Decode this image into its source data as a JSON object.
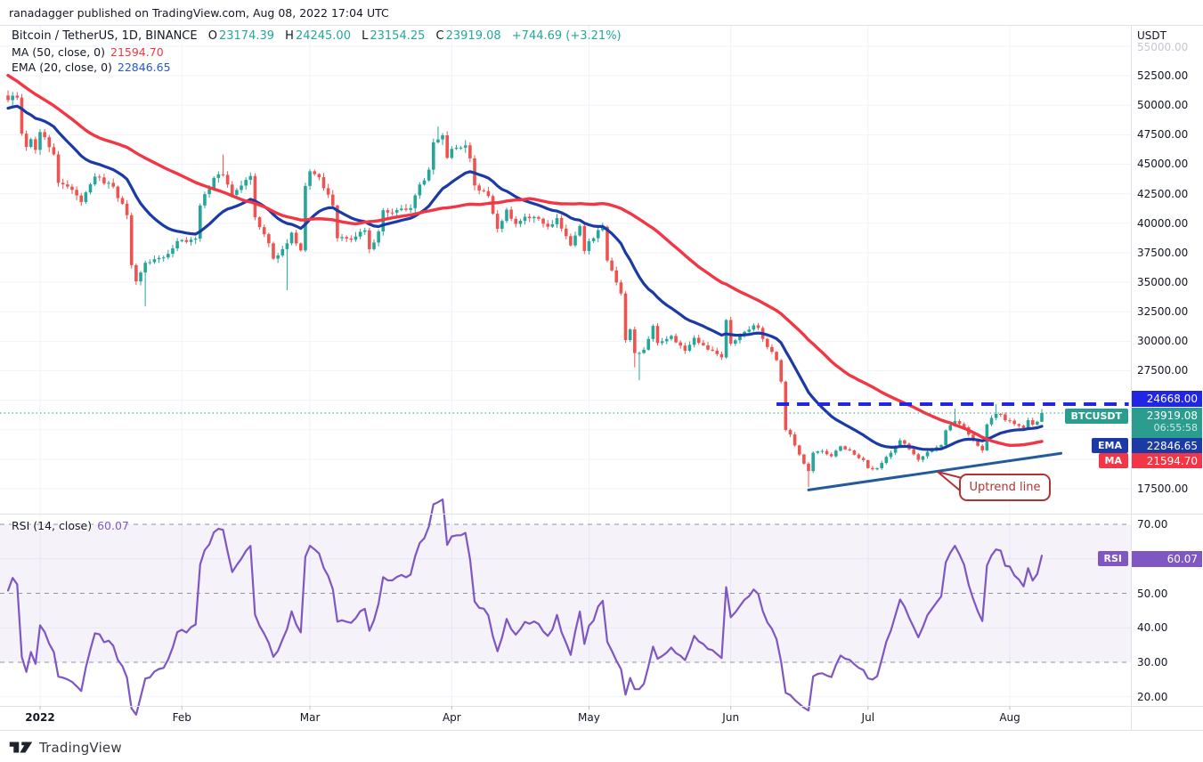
{
  "attribution": "ranadagger published on TradingView.com, Aug 08, 2022 17:04 UTC",
  "legend": {
    "symbol": "Bitcoin / TetherUS, 1D, BINANCE",
    "o_label": "O",
    "o": "23174.39",
    "h_label": "H",
    "h": "24245.00",
    "l_label": "L",
    "l": "23154.25",
    "c_label": "C",
    "c": "23919.08",
    "change": "+744.69 (+3.21%)",
    "ma_label": "MA (50, close, 0)",
    "ma_value": "21594.70",
    "ema_label": "EMA (20, close, 0)",
    "ema_value": "22846.65",
    "rsi_label": "RSI (14, close)",
    "rsi_value": "60.07"
  },
  "price_axis": {
    "currency": "USDT",
    "faded_top_tick": "55000.00",
    "ticks": [
      {
        "label": "52500.00",
        "value": 52500
      },
      {
        "label": "50000.00",
        "value": 50000
      },
      {
        "label": "47500.00",
        "value": 47500
      },
      {
        "label": "45000.00",
        "value": 45000
      },
      {
        "label": "42500.00",
        "value": 42500
      },
      {
        "label": "40000.00",
        "value": 40000
      },
      {
        "label": "37500.00",
        "value": 37500
      },
      {
        "label": "35000.00",
        "value": 35000
      },
      {
        "label": "32500.00",
        "value": 32500
      },
      {
        "label": "30000.00",
        "value": 30000
      },
      {
        "label": "27500.00",
        "value": 27500
      },
      {
        "label": "17500.00",
        "value": 17500
      }
    ]
  },
  "rsi_axis": {
    "ticks": [
      {
        "label": "70.00",
        "value": 70
      },
      {
        "label": "50.00",
        "value": 50
      },
      {
        "label": "40.00",
        "value": 40
      },
      {
        "label": "30.00",
        "value": 30
      },
      {
        "label": "20.00",
        "value": 20
      }
    ]
  },
  "badges": {
    "resistance": "24668.00",
    "symbol_label": "BTCUSDT",
    "price": "23919.08",
    "countdown": "06:55:58",
    "ema_label": "EMA",
    "ema": "22846.65",
    "ma_label": "MA",
    "ma": "21594.70",
    "rsi_label": "RSI",
    "rsi": "60.07"
  },
  "time_axis": {
    "labels": [
      {
        "text": "2022",
        "day": 0,
        "bold": true
      },
      {
        "text": "Feb",
        "day": 31
      },
      {
        "text": "Mar",
        "day": 59
      },
      {
        "text": "Apr",
        "day": 90
      },
      {
        "text": "May",
        "day": 120
      },
      {
        "text": "Jun",
        "day": 151
      },
      {
        "text": "Jul",
        "day": 181
      },
      {
        "text": "Aug",
        "day": 212
      }
    ]
  },
  "callout": {
    "text": "Uptrend line"
  },
  "watermark": "TradingView",
  "colors": {
    "text": "#131722",
    "up": "#26a69a",
    "down": "#ef5350",
    "ma": "#f23645",
    "ema": "#1b3aa6",
    "ema_legend": "#2157d6",
    "rsi": "#7e57c2",
    "rsi_band_fill": "rgba(126,87,194,0.08)",
    "resistance": "#2126e2",
    "last_price": "#2a9d8f",
    "trendline": "#235a9c",
    "callout": "#b13434",
    "grid": "#f0f3fa",
    "dash": "#90949f",
    "border": "#e0e3eb",
    "muted": "#b8bbc4",
    "axis_faded": "#c4c7ce"
  },
  "chart_data": {
    "type": "candlestick",
    "symbol": "BTCUSDT",
    "exchange": "BINANCE",
    "interval": "1D",
    "epoch": "2022-01-01",
    "visible_day_range": [
      -7,
      219
    ],
    "price_pane_range": [
      15200,
      56800
    ],
    "prehistory_keypoints": [
      [
        -60,
        66900
      ],
      [
        -57,
        64100
      ],
      [
        -52,
        60350
      ],
      [
        -46,
        57600
      ],
      [
        -40,
        57800
      ],
      [
        -35,
        49400
      ],
      [
        -30,
        47700
      ],
      [
        -26,
        46700
      ],
      [
        -21,
        46900
      ],
      [
        -16,
        48300
      ],
      [
        -13,
        50100
      ],
      [
        -10,
        50700
      ],
      [
        -8,
        50822
      ]
    ],
    "close_keypoints": [
      [
        -7,
        50428
      ],
      [
        -6,
        50809
      ],
      [
        -5,
        50640
      ],
      [
        -4,
        47588
      ],
      [
        -3,
        46464
      ],
      [
        -2,
        47120
      ],
      [
        -1,
        46216
      ],
      [
        0,
        47722
      ],
      [
        1,
        47286
      ],
      [
        2,
        46446
      ],
      [
        3,
        45832
      ],
      [
        4,
        43425
      ],
      [
        6,
        43100
      ],
      [
        9,
        41800
      ],
      [
        12,
        43950
      ],
      [
        16,
        43100
      ],
      [
        19,
        40680
      ],
      [
        20,
        36445
      ],
      [
        21,
        35070
      ],
      [
        23,
        36650
      ],
      [
        25,
        36950
      ],
      [
        27,
        37100
      ],
      [
        30,
        38480
      ],
      [
        34,
        38700
      ],
      [
        35,
        41500
      ],
      [
        38,
        43840
      ],
      [
        40,
        44100
      ],
      [
        42,
        42400
      ],
      [
        46,
        44000
      ],
      [
        47,
        40500
      ],
      [
        50,
        38300
      ],
      [
        51,
        37000
      ],
      [
        54,
        38300
      ],
      [
        55,
        39200
      ],
      [
        57,
        37700
      ],
      [
        58,
        43160
      ],
      [
        59,
        44400
      ],
      [
        61,
        43900
      ],
      [
        64,
        41500
      ],
      [
        65,
        38730
      ],
      [
        68,
        38600
      ],
      [
        71,
        39400
      ],
      [
        72,
        37800
      ],
      [
        74,
        39300
      ],
      [
        75,
        41100
      ],
      [
        77,
        40900
      ],
      [
        81,
        41280
      ],
      [
        82,
        42360
      ],
      [
        85,
        44540
      ],
      [
        86,
        46850
      ],
      [
        87,
        47100
      ],
      [
        88,
        47450
      ],
      [
        89,
        45540
      ],
      [
        90,
        46300
      ],
      [
        93,
        46600
      ],
      [
        94,
        45500
      ],
      [
        95,
        43200
      ],
      [
        98,
        42300
      ],
      [
        100,
        39530
      ],
      [
        102,
        41150
      ],
      [
        104,
        39940
      ],
      [
        106,
        40550
      ],
      [
        109,
        40380
      ],
      [
        111,
        39700
      ],
      [
        113,
        40440
      ],
      [
        116,
        38120
      ],
      [
        118,
        39770
      ],
      [
        119,
        37650
      ],
      [
        120,
        38480
      ],
      [
        123,
        39700
      ],
      [
        124,
        36840
      ],
      [
        125,
        36000
      ],
      [
        127,
        34050
      ],
      [
        128,
        30100
      ],
      [
        129,
        31000
      ],
      [
        130,
        29000
      ],
      [
        131,
        29000
      ],
      [
        132,
        29280
      ],
      [
        134,
        31300
      ],
      [
        135,
        29850
      ],
      [
        138,
        30450
      ],
      [
        141,
        29200
      ],
      [
        143,
        30290
      ],
      [
        145,
        29655
      ],
      [
        147,
        29200
      ],
      [
        149,
        28630
      ],
      [
        150,
        31800
      ],
      [
        151,
        29800
      ],
      [
        153,
        30450
      ],
      [
        156,
        31350
      ],
      [
        157,
        31125
      ],
      [
        158,
        30200
      ],
      [
        160,
        29100
      ],
      [
        161,
        28400
      ],
      [
        162,
        26575
      ],
      [
        163,
        22487
      ],
      [
        164,
        22100
      ],
      [
        166,
        20400
      ],
      [
        168,
        19000
      ],
      [
        169,
        20550
      ],
      [
        171,
        20700
      ],
      [
        173,
        20250
      ],
      [
        175,
        21100
      ],
      [
        177,
        20750
      ],
      [
        179,
        20100
      ],
      [
        180,
        19925
      ],
      [
        181,
        19250
      ],
      [
        183,
        19240
      ],
      [
        185,
        20200
      ],
      [
        186,
        20550
      ],
      [
        188,
        21600
      ],
      [
        190,
        20850
      ],
      [
        192,
        19950
      ],
      [
        193,
        20250
      ],
      [
        195,
        20820
      ],
      [
        197,
        21200
      ],
      [
        198,
        22450
      ],
      [
        200,
        23230
      ],
      [
        202,
        22700
      ],
      [
        204,
        21600
      ],
      [
        206,
        20750
      ],
      [
        207,
        22950
      ],
      [
        209,
        23840
      ],
      [
        210,
        23800
      ],
      [
        211,
        23300
      ],
      [
        212,
        23270
      ],
      [
        213,
        22980
      ],
      [
        214,
        22845
      ],
      [
        215,
        22630
      ],
      [
        216,
        23310
      ],
      [
        217,
        22930
      ],
      [
        218,
        23175
      ],
      [
        219,
        23919.08
      ]
    ],
    "extremes": {
      "23": {
        "low": 32950
      },
      "40": {
        "high": 45820
      },
      "54": {
        "low": 34322
      },
      "87": {
        "high": 48200
      },
      "130": {
        "low": 27785
      },
      "131": {
        "low": 26700
      },
      "168": {
        "low": 17622
      },
      "200": {
        "high": 24276
      },
      "209": {
        "high": 24668
      }
    },
    "current_bar": {
      "day": 219,
      "open": 23174.39,
      "high": 24245.0,
      "low": 23154.25,
      "close": 23919.08
    },
    "overlays": [
      {
        "type": "sma",
        "period": 50,
        "last": 21594.7
      },
      {
        "type": "ema",
        "period": 20,
        "last": 22846.65
      }
    ],
    "rsi": {
      "period": 14,
      "last": 60.07,
      "overbought": 70,
      "oversold": 30,
      "midline": 50
    },
    "levels": {
      "resistance": {
        "value": 24668.0,
        "from_day": 161,
        "to_day": 238,
        "style": "dashed"
      },
      "last_price": {
        "value": 23919.08,
        "style": "dotted"
      }
    },
    "trendline": {
      "label": "Uptrend line",
      "start": {
        "day": 168,
        "price": 17400
      },
      "end": {
        "day": 223.2,
        "price": 20500
      }
    }
  }
}
